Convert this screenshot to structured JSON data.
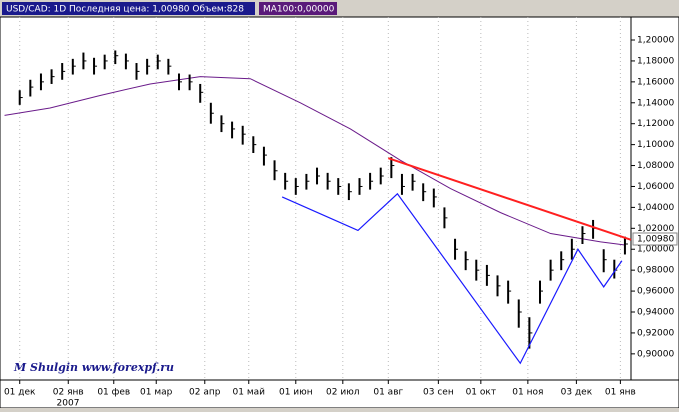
{
  "chart_data": {
    "type": "ohlc",
    "title": "USD/CAD: 1D Последняя цена: 1,00980 Объем:828",
    "indicator_label": "MA100:0,00000",
    "watermark": "M Shulgin www.forexpf.ru",
    "year_label": "2007",
    "xlim": [
      -13,
      403
    ],
    "ylim": [
      0.875,
      1.222
    ],
    "grid": true,
    "xticks": [
      {
        "value": 0,
        "label": "01 дек"
      },
      {
        "value": 32,
        "label": "02 янв"
      },
      {
        "value": 62,
        "label": "01 фев"
      },
      {
        "value": 90,
        "label": "01 мар"
      },
      {
        "value": 122,
        "label": "02 апр"
      },
      {
        "value": 151,
        "label": "01 май"
      },
      {
        "value": 182,
        "label": "01 июн"
      },
      {
        "value": 213,
        "label": "02 июл"
      },
      {
        "value": 243,
        "label": "01 авг"
      },
      {
        "value": 276,
        "label": "03 сен"
      },
      {
        "value": 304,
        "label": "01 окт"
      },
      {
        "value": 335,
        "label": "01 ноя"
      },
      {
        "value": 367,
        "label": "03 дек"
      },
      {
        "value": 396,
        "label": "01 янв"
      }
    ],
    "yticks": [
      {
        "value": 0.9,
        "label": "0,90000"
      },
      {
        "value": 0.92,
        "label": "0,92000"
      },
      {
        "value": 0.94,
        "label": "0,94000"
      },
      {
        "value": 0.96,
        "label": "0,96000"
      },
      {
        "value": 0.98,
        "label": "0,98000"
      },
      {
        "value": 1.0,
        "label": "1,00000"
      },
      {
        "value": 1.02,
        "label": "1,02000"
      },
      {
        "value": 1.04,
        "label": "1,04000"
      },
      {
        "value": 1.06,
        "label": "1,06000"
      },
      {
        "value": 1.08,
        "label": "1,08000"
      },
      {
        "value": 1.1,
        "label": "1,10000"
      },
      {
        "value": 1.12,
        "label": "1,12000"
      },
      {
        "value": 1.14,
        "label": "1,14000"
      },
      {
        "value": 1.16,
        "label": "1,16000"
      },
      {
        "value": 1.18,
        "label": "1,18000"
      },
      {
        "value": 1.2,
        "label": "1,20000"
      }
    ],
    "last_price": {
      "value": 1.0098,
      "label": "1,00980"
    },
    "price_color": "#000000",
    "x": [
      0,
      7,
      14,
      21,
      28,
      35,
      42,
      49,
      56,
      63,
      70,
      77,
      84,
      91,
      98,
      105,
      112,
      119,
      126,
      133,
      140,
      147,
      154,
      161,
      168,
      175,
      182,
      189,
      196,
      203,
      210,
      217,
      224,
      231,
      238,
      245,
      252,
      259,
      266,
      273,
      280,
      287,
      294,
      301,
      308,
      315,
      322,
      329,
      336,
      343,
      350,
      357,
      364,
      371,
      378,
      385,
      392,
      399
    ],
    "close": [
      1.145,
      1.155,
      1.16,
      1.165,
      1.17,
      1.175,
      1.18,
      1.175,
      1.18,
      1.185,
      1.18,
      1.17,
      1.175,
      1.18,
      1.175,
      1.16,
      1.16,
      1.15,
      1.13,
      1.12,
      1.115,
      1.11,
      1.1,
      1.09,
      1.075,
      1.065,
      1.06,
      1.065,
      1.07,
      1.065,
      1.06,
      1.055,
      1.06,
      1.065,
      1.07,
      1.08,
      1.06,
      1.065,
      1.055,
      1.05,
      1.03,
      1.0,
      0.99,
      0.98,
      0.975,
      0.965,
      0.96,
      0.94,
      0.92,
      0.96,
      0.98,
      0.99,
      1.0,
      1.015,
      1.02,
      0.99,
      0.98,
      1.005
    ],
    "high": [
      1.152,
      1.162,
      1.168,
      1.172,
      1.178,
      1.182,
      1.188,
      1.183,
      1.186,
      1.19,
      1.187,
      1.178,
      1.182,
      1.186,
      1.182,
      1.168,
      1.167,
      1.158,
      1.14,
      1.128,
      1.122,
      1.118,
      1.108,
      1.098,
      1.085,
      1.073,
      1.068,
      1.072,
      1.078,
      1.073,
      1.068,
      1.063,
      1.068,
      1.073,
      1.078,
      1.088,
      1.072,
      1.072,
      1.063,
      1.058,
      1.04,
      1.01,
      0.998,
      0.99,
      0.985,
      0.975,
      0.97,
      0.952,
      0.935,
      0.97,
      0.99,
      0.998,
      1.01,
      1.022,
      1.028,
      1.0,
      0.99,
      1.012
    ],
    "low": [
      1.138,
      1.146,
      1.152,
      1.158,
      1.162,
      1.167,
      1.172,
      1.167,
      1.172,
      1.177,
      1.172,
      1.162,
      1.167,
      1.172,
      1.167,
      1.152,
      1.152,
      1.14,
      1.12,
      1.112,
      1.106,
      1.1,
      1.092,
      1.08,
      1.066,
      1.057,
      1.052,
      1.057,
      1.062,
      1.057,
      1.052,
      1.047,
      1.052,
      1.057,
      1.062,
      1.068,
      1.052,
      1.056,
      1.046,
      1.04,
      1.02,
      0.99,
      0.98,
      0.97,
      0.965,
      0.955,
      0.948,
      0.925,
      0.905,
      0.948,
      0.97,
      0.98,
      0.99,
      1.005,
      1.01,
      0.978,
      0.972,
      0.995
    ],
    "ma": {
      "name": "MA100",
      "color": "#6a1b8a",
      "x": [
        -10,
        20,
        53,
        86,
        119,
        152,
        185,
        218,
        251,
        284,
        317,
        350,
        383,
        399
      ],
      "values": [
        1.128,
        1.135,
        1.147,
        1.158,
        1.165,
        1.163,
        1.14,
        1.115,
        1.085,
        1.058,
        1.035,
        1.015,
        1.007,
        1.004
      ]
    },
    "trendline": {
      "color": "#ff2020",
      "x": [
        243,
        403
      ],
      "values": [
        1.087,
        1.009
      ]
    },
    "pattern": {
      "color": "#1a1aff",
      "x": [
        173,
        223,
        249,
        330,
        368,
        385,
        397
      ],
      "values": [
        1.05,
        1.018,
        1.053,
        0.891,
        1.0,
        0.964,
        0.989
      ]
    }
  }
}
